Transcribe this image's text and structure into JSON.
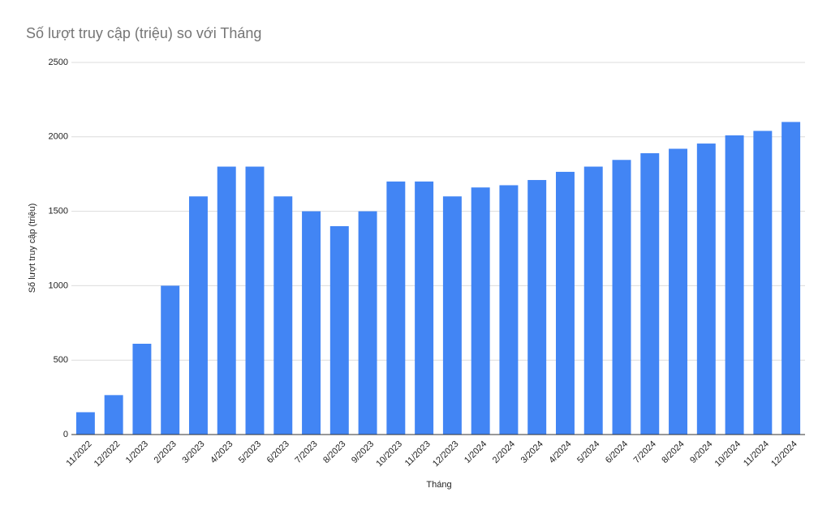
{
  "chart_data": {
    "type": "bar",
    "title": "Số lượt truy cập (triệu) so với Tháng",
    "x_label": "Tháng",
    "y_label": "Số lượt truy cập (triệu)",
    "categories": [
      "11/2022",
      "12/2022",
      "1/2023",
      "2/2023",
      "3/2023",
      "4/2023",
      "5/2023",
      "6/2023",
      "7/2023",
      "8/2023",
      "9/2023",
      "10/2023",
      "11/2023",
      "12/2023",
      "1/2024",
      "2/2024",
      "3/2024",
      "4/2024",
      "5/2024",
      "6/2024",
      "7/2024",
      "8/2024",
      "9/2024",
      "10/2024",
      "11/2024",
      "12/2024"
    ],
    "values": [
      150,
      265,
      610,
      1000,
      1600,
      1800,
      1800,
      1600,
      1500,
      1400,
      1500,
      1700,
      1700,
      1600,
      1660,
      1675,
      1710,
      1765,
      1800,
      1845,
      1890,
      1920,
      1955,
      2010,
      2040,
      2100
    ],
    "color": "#4285f4",
    "ylim": [
      0,
      2500
    ],
    "yticks": [
      0,
      500,
      1000,
      1500,
      2000,
      2500
    ],
    "grid": true
  }
}
